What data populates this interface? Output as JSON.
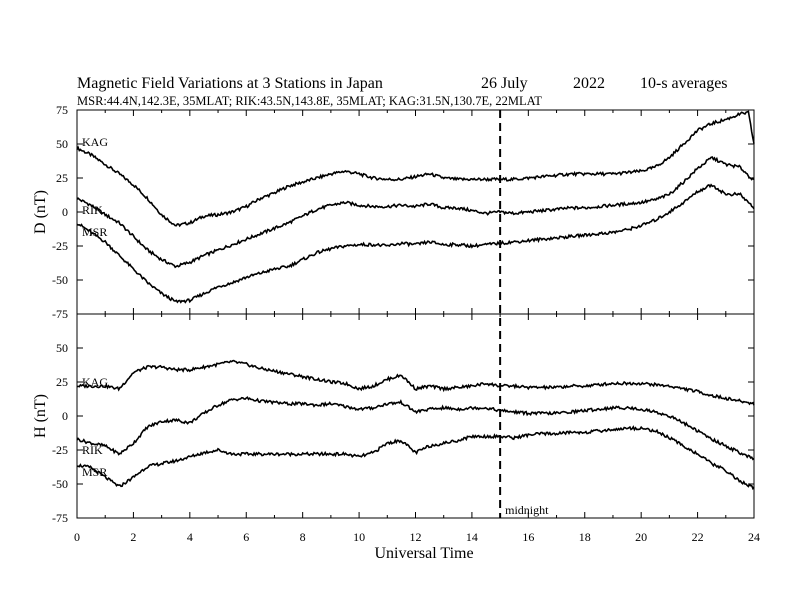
{
  "chart_data": {
    "type": "line",
    "title_parts": [
      "Magnetic Field Variations at 3 Stations in Japan",
      "26 July",
      "2022",
      "10-s averages"
    ],
    "subtitle": "MSR:44.4N,142.3E, 35MLAT;  RIK:43.5N,143.8E, 35MLAT;  KAG:31.5N,130.7E, 22MLAT",
    "xlabel": "Universal Time",
    "xlim": [
      0,
      24
    ],
    "xticks": [
      "0",
      "2",
      "4",
      "6",
      "8",
      "10",
      "12",
      "14",
      "16",
      "18",
      "20",
      "22",
      "24"
    ],
    "annotation": "midnight",
    "annotation_x": 15,
    "panels": [
      {
        "ylabel": "D (nT)",
        "ylim": [
          -75,
          75
        ],
        "yticks": [
          "75",
          "50",
          "25",
          "0",
          "-25",
          "-50",
          "-75"
        ],
        "series": [
          {
            "name": "KAG",
            "x": [
              0,
              0.5,
              1,
              1.5,
              2,
              2.5,
              3,
              3.5,
              4,
              4.5,
              5,
              5.5,
              6,
              6.5,
              7,
              7.5,
              8,
              8.5,
              9,
              9.5,
              10,
              10.5,
              11,
              11.5,
              12,
              12.5,
              13,
              13.5,
              14,
              14.5,
              15,
              15.5,
              16,
              16.5,
              17,
              17.5,
              18,
              18.5,
              19,
              19.5,
              20,
              20.5,
              21,
              21.5,
              22,
              22.5,
              23,
              23.5,
              23.8,
              24
            ],
            "y": [
              47,
              42,
              35,
              28,
              20,
              10,
              -2,
              -10,
              -8,
              -3,
              -2,
              0,
              4,
              10,
              14,
              19,
              22,
              25,
              28,
              30,
              28,
              25,
              24,
              24,
              26,
              28,
              25,
              24,
              24,
              24,
              24,
              24,
              25,
              26,
              27,
              28,
              28,
              28,
              28,
              29,
              30,
              33,
              40,
              50,
              60,
              65,
              68,
              72,
              73,
              50
            ]
          },
          {
            "name": "RIK",
            "x": [
              0,
              0.5,
              1,
              1.5,
              2,
              2.5,
              3,
              3.5,
              4,
              4.5,
              5,
              5.5,
              6,
              6.5,
              7,
              7.5,
              8,
              8.5,
              9,
              9.5,
              10,
              10.5,
              11,
              11.5,
              12,
              12.5,
              13,
              13.5,
              14,
              14.5,
              15,
              15.5,
              16,
              16.5,
              17,
              17.5,
              18,
              18.5,
              19,
              19.5,
              20,
              20.5,
              21,
              21.5,
              22,
              22.5,
              23,
              23.5,
              24
            ],
            "y": [
              10,
              5,
              -2,
              -8,
              -18,
              -28,
              -35,
              -40,
              -37,
              -32,
              -28,
              -24,
              -20,
              -16,
              -12,
              -8,
              -3,
              2,
              5,
              7,
              5,
              4,
              4,
              5,
              4,
              6,
              3,
              3,
              1,
              -1,
              0,
              -1,
              0,
              1,
              2,
              3,
              3,
              4,
              5,
              6,
              7,
              9,
              13,
              22,
              32,
              40,
              35,
              33,
              23
            ]
          },
          {
            "name": "MSR",
            "x": [
              0,
              0.5,
              1,
              1.5,
              2,
              2.5,
              3,
              3.5,
              4,
              4.5,
              5,
              5.5,
              6,
              6.5,
              7,
              7.5,
              8,
              8.5,
              9,
              9.5,
              10,
              10.5,
              11,
              11.5,
              12,
              12.5,
              13,
              13.5,
              14,
              14.5,
              15,
              15.5,
              16,
              16.5,
              17,
              17.5,
              18,
              18.5,
              19,
              19.5,
              20,
              20.5,
              21,
              21.5,
              22,
              22.5,
              23,
              23.5,
              24
            ],
            "y": [
              -8,
              -15,
              -22,
              -32,
              -42,
              -52,
              -60,
              -66,
              -65,
              -60,
              -55,
              -52,
              -48,
              -45,
              -42,
              -40,
              -35,
              -30,
              -27,
              -25,
              -24,
              -24,
              -25,
              -23,
              -24,
              -22,
              -24,
              -24,
              -25,
              -24,
              -23,
              -22,
              -21,
              -20,
              -19,
              -18,
              -17,
              -16,
              -15,
              -13,
              -10,
              -6,
              0,
              7,
              15,
              20,
              13,
              13,
              3
            ]
          }
        ]
      },
      {
        "ylabel": "H (nT)",
        "ylim": [
          -75,
          75
        ],
        "yticks": [
          "50",
          "25",
          "0",
          "-25",
          "-50",
          "-75"
        ],
        "series": [
          {
            "name": "KAG",
            "x": [
              0,
              0.5,
              1,
              1.5,
              2,
              2.5,
              3,
              3.5,
              4,
              4.5,
              5,
              5.5,
              6,
              6.5,
              7,
              7.5,
              8,
              8.5,
              9,
              9.5,
              10,
              10.5,
              11,
              11.5,
              12,
              12.5,
              13,
              13.5,
              14,
              14.5,
              15,
              15.5,
              16,
              16.5,
              17,
              17.5,
              18,
              18.5,
              19,
              19.5,
              20,
              20.5,
              21,
              21.5,
              22,
              22.5,
              23,
              23.5,
              24
            ],
            "y": [
              22,
              22,
              22,
              20,
              32,
              36,
              36,
              34,
              34,
              36,
              38,
              40,
              38,
              35,
              33,
              31,
              29,
              27,
              25,
              24,
              20,
              22,
              27,
              30,
              20,
              22,
              20,
              21,
              22,
              24,
              22,
              22,
              21,
              21,
              21,
              22,
              22,
              23,
              24,
              24,
              24,
              23,
              22,
              20,
              18,
              15,
              13,
              11,
              9
            ]
          },
          {
            "name": "RIK",
            "x": [
              0,
              0.5,
              1,
              1.5,
              2,
              2.5,
              3,
              3.5,
              4,
              4.5,
              5,
              5.5,
              6,
              6.5,
              7,
              7.5,
              8,
              8.5,
              9,
              9.5,
              10,
              10.5,
              11,
              11.5,
              12,
              12.5,
              13,
              13.5,
              14,
              14.5,
              15,
              15.5,
              16,
              16.5,
              17,
              17.5,
              18,
              18.5,
              19,
              19.5,
              20,
              20.5,
              21,
              21.5,
              22,
              22.5,
              23,
              23.5,
              24
            ],
            "y": [
              -17,
              -20,
              -22,
              -28,
              -20,
              -8,
              -4,
              -3,
              -5,
              2,
              8,
              12,
              13,
              11,
              10,
              9,
              9,
              8,
              9,
              7,
              5,
              6,
              9,
              10,
              3,
              5,
              6,
              5,
              6,
              6,
              4,
              3,
              2,
              2,
              2,
              3,
              4,
              5,
              6,
              6,
              5,
              3,
              0,
              -5,
              -11,
              -17,
              -22,
              -27,
              -32
            ]
          },
          {
            "name": "MSR",
            "x": [
              0,
              0.5,
              1,
              1.5,
              2,
              2.5,
              3,
              3.5,
              4,
              4.5,
              5,
              5.5,
              6,
              6.5,
              7,
              7.5,
              8,
              8.5,
              9,
              9.5,
              10,
              10.5,
              11,
              11.5,
              12,
              12.5,
              13,
              13.5,
              14,
              14.5,
              15,
              15.5,
              16,
              16.5,
              17,
              17.5,
              18,
              18.5,
              19,
              19.5,
              20,
              20.5,
              21,
              21.5,
              22,
              22.5,
              23,
              23.5,
              24
            ],
            "y": [
              -36,
              -38,
              -45,
              -52,
              -45,
              -37,
              -35,
              -33,
              -30,
              -27,
              -25,
              -28,
              -28,
              -28,
              -28,
              -28,
              -28,
              -28,
              -28,
              -28,
              -30,
              -27,
              -20,
              -18,
              -27,
              -22,
              -20,
              -18,
              -15,
              -15,
              -15,
              -16,
              -14,
              -13,
              -13,
              -12,
              -12,
              -11,
              -10,
              -9,
              -9,
              -11,
              -16,
              -22,
              -28,
              -35,
              -40,
              -48,
              -53
            ]
          }
        ]
      }
    ]
  }
}
